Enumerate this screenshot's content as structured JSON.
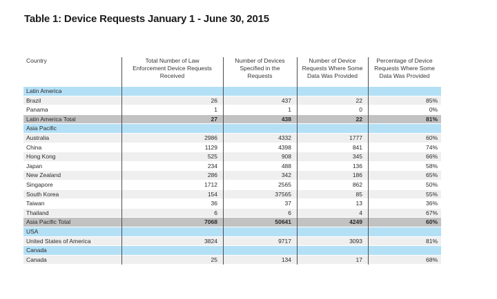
{
  "chart_data": {
    "type": "table",
    "title": "Table 1: Device Requests January 1 - June 30, 2015",
    "columns": [
      "Country",
      "Total Number of Law\nEnforcement Device Requests\nReceived",
      "Number of Devices\nSpecified in the\nRequests",
      "Number of Device\nRequests Where Some\nData Was Provided",
      "Percentage of Device\nRequests Where Some\nData Was Provided"
    ],
    "rows": [
      {
        "kind": "section",
        "cells": [
          "Latin America",
          "",
          "",
          "",
          ""
        ]
      },
      {
        "kind": "data",
        "zebra": "shaded",
        "cells": [
          "Brazil",
          "26",
          "437",
          "22",
          "85%"
        ]
      },
      {
        "kind": "data",
        "zebra": "plain",
        "cells": [
          "Panama",
          "1",
          "1",
          "0",
          "0%"
        ]
      },
      {
        "kind": "total",
        "cells": [
          "Latin America Total",
          "27",
          "438",
          "22",
          "81%"
        ]
      },
      {
        "kind": "section",
        "cells": [
          "Asia Pacific",
          "",
          "",
          "",
          ""
        ]
      },
      {
        "kind": "data",
        "zebra": "shaded",
        "cells": [
          "Australia",
          "2986",
          "4332",
          "1777",
          "60%"
        ]
      },
      {
        "kind": "data",
        "zebra": "plain",
        "cells": [
          "China",
          "1129",
          "4398",
          "841",
          "74%"
        ]
      },
      {
        "kind": "data",
        "zebra": "shaded",
        "cells": [
          "Hong Kong",
          "525",
          "908",
          "345",
          "66%"
        ]
      },
      {
        "kind": "data",
        "zebra": "plain",
        "cells": [
          "Japan",
          "234",
          "488",
          "136",
          "58%"
        ]
      },
      {
        "kind": "data",
        "zebra": "shaded",
        "cells": [
          "New Zealand",
          "286",
          "342",
          "186",
          "65%"
        ]
      },
      {
        "kind": "data",
        "zebra": "plain",
        "cells": [
          "Singapore",
          "1712",
          "2565",
          "862",
          "50%"
        ]
      },
      {
        "kind": "data",
        "zebra": "shaded",
        "cells": [
          "South Korea",
          "154",
          "37565",
          "85",
          "55%"
        ]
      },
      {
        "kind": "data",
        "zebra": "plain",
        "cells": [
          "Taiwan",
          "36",
          "37",
          "13",
          "36%"
        ]
      },
      {
        "kind": "data",
        "zebra": "shaded",
        "cells": [
          "Thailand",
          "6",
          "6",
          "4",
          "67%"
        ]
      },
      {
        "kind": "total",
        "cells": [
          "Asia Pacific Total",
          "7068",
          "50641",
          "4249",
          "60%"
        ]
      },
      {
        "kind": "section",
        "cells": [
          "USA",
          "",
          "",
          "",
          ""
        ]
      },
      {
        "kind": "data",
        "zebra": "shaded",
        "cells": [
          "United States of America",
          "3824",
          "9717",
          "3093",
          "81%"
        ]
      },
      {
        "kind": "section",
        "cells": [
          "Canada",
          "",
          "",
          "",
          ""
        ]
      },
      {
        "kind": "data",
        "zebra": "shaded",
        "cells": [
          "Canada",
          "25",
          "134",
          "17",
          "68%"
        ]
      }
    ]
  },
  "colors": {
    "section_row_bg": "#b4e0f6",
    "total_row_bg": "#c2c2c3",
    "zebra_row_bg": "#efeff0",
    "divider_color": "#4a4a4c",
    "text_color": "#29292b",
    "header_text_color": "#353537",
    "title_color": "#1b1b1d"
  }
}
